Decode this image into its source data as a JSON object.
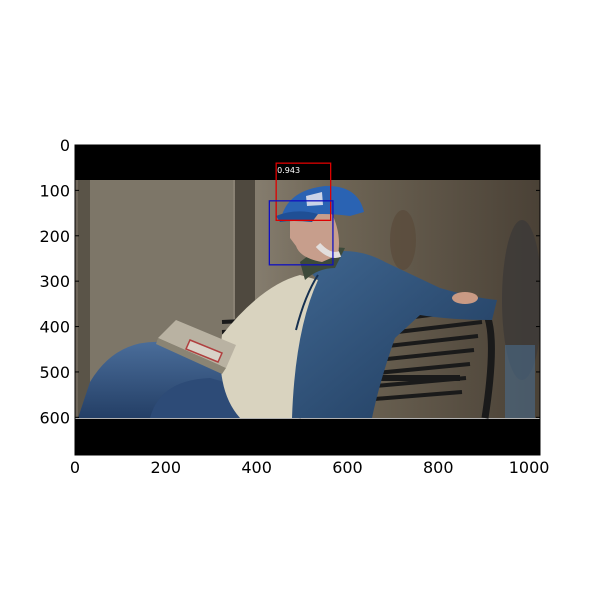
{
  "image": {
    "description_tags": [
      "man-in-cap",
      "denim-jacket",
      "park-bench",
      "portable-radio"
    ]
  },
  "axes": {
    "xlim": [
      0,
      1024
    ],
    "ylim": [
      683,
      0
    ],
    "x_ticks": [
      0,
      200,
      400,
      600,
      800,
      1000
    ],
    "y_ticks": [
      0,
      100,
      200,
      300,
      400,
      500,
      600
    ],
    "x_tick_labels": [
      "0",
      "200",
      "400",
      "600",
      "800",
      "1000"
    ],
    "y_tick_labels": [
      "0",
      "100",
      "200",
      "300",
      "400",
      "500",
      "600"
    ]
  },
  "letterbox": {
    "top_band": [
      0,
      78
    ],
    "bottom_band": [
      603,
      683
    ]
  },
  "detections": [
    {
      "label": "0.943",
      "color": "#dd0000",
      "x0": 443,
      "y0": 40,
      "x1": 563,
      "y1": 166
    },
    {
      "label": "",
      "color": "#1010c0",
      "x0": 428,
      "y0": 123,
      "x1": 568,
      "y1": 264
    }
  ]
}
